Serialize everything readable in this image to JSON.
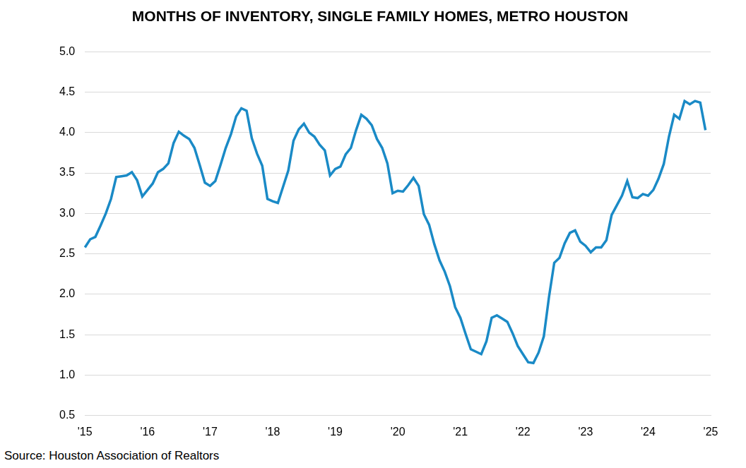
{
  "chart_data": {
    "type": "line",
    "title": "MONTHS OF INVENTORY, SINGLE FAMILY HOMES, METRO HOUSTON",
    "source": "Source: Houston Association of Realtors",
    "categories": [
      "'15",
      null,
      null,
      null,
      null,
      null,
      null,
      null,
      null,
      null,
      null,
      null,
      "'16",
      null,
      null,
      null,
      null,
      null,
      null,
      null,
      null,
      null,
      null,
      null,
      "'17",
      null,
      null,
      null,
      null,
      null,
      null,
      null,
      null,
      null,
      null,
      null,
      "'18",
      null,
      null,
      null,
      null,
      null,
      null,
      null,
      null,
      null,
      null,
      null,
      "'19",
      null,
      null,
      null,
      null,
      null,
      null,
      null,
      null,
      null,
      null,
      null,
      "'20",
      null,
      null,
      null,
      null,
      null,
      null,
      null,
      null,
      null,
      null,
      null,
      "'21",
      null,
      null,
      null,
      null,
      null,
      null,
      null,
      null,
      null,
      null,
      null,
      "'22",
      null,
      null,
      null,
      null,
      null,
      null,
      null,
      null,
      null,
      null,
      null,
      "'23",
      null,
      null,
      null,
      null,
      null,
      null,
      null,
      null,
      null,
      null,
      null,
      "'24",
      null,
      null,
      null,
      null,
      null,
      null,
      null,
      null,
      null,
      null,
      null,
      "'25"
    ],
    "values": [
      2.58,
      2.68,
      2.71,
      2.85,
      3.0,
      3.18,
      3.45,
      3.46,
      3.47,
      3.51,
      3.41,
      3.21,
      3.29,
      3.37,
      3.51,
      3.55,
      3.62,
      3.87,
      4.01,
      3.96,
      3.92,
      3.81,
      3.6,
      3.38,
      3.34,
      3.4,
      3.6,
      3.81,
      3.98,
      4.2,
      4.3,
      4.27,
      3.93,
      3.74,
      3.59,
      3.18,
      3.15,
      3.13,
      3.33,
      3.53,
      3.9,
      4.04,
      4.11,
      4.0,
      3.95,
      3.85,
      3.78,
      3.47,
      3.55,
      3.58,
      3.73,
      3.81,
      4.03,
      4.22,
      4.17,
      4.09,
      3.92,
      3.81,
      3.62,
      3.25,
      3.28,
      3.27,
      3.35,
      3.44,
      3.34,
      2.99,
      2.86,
      2.62,
      2.42,
      2.28,
      2.1,
      1.84,
      1.71,
      1.51,
      1.32,
      1.29,
      1.26,
      1.42,
      1.71,
      1.74,
      1.7,
      1.66,
      1.52,
      1.36,
      1.26,
      1.16,
      1.15,
      1.28,
      1.48,
      1.97,
      2.39,
      2.45,
      2.63,
      2.76,
      2.79,
      2.65,
      2.6,
      2.52,
      2.58,
      2.58,
      2.67,
      2.98,
      3.1,
      3.22,
      3.4,
      3.2,
      3.19,
      3.24,
      3.22,
      3.29,
      3.43,
      3.61,
      3.95,
      4.22,
      4.17,
      4.39,
      4.35,
      4.39,
      4.37,
      4.03,
      null
    ],
    "color": "#1a8ac6",
    "ylim": [
      0.5,
      5.0
    ],
    "yticks": [
      0.5,
      {
        "value": 1,
        "label": "1.0"
      },
      1.5,
      {
        "value": 2,
        "label": "2.0"
      },
      2.5,
      {
        "value": 3,
        "label": "3.0"
      },
      3.5,
      {
        "value": 4,
        "label": "4.0"
      },
      4.5,
      {
        "value": 5,
        "label": "5.0"
      }
    ],
    "grid": true
  }
}
